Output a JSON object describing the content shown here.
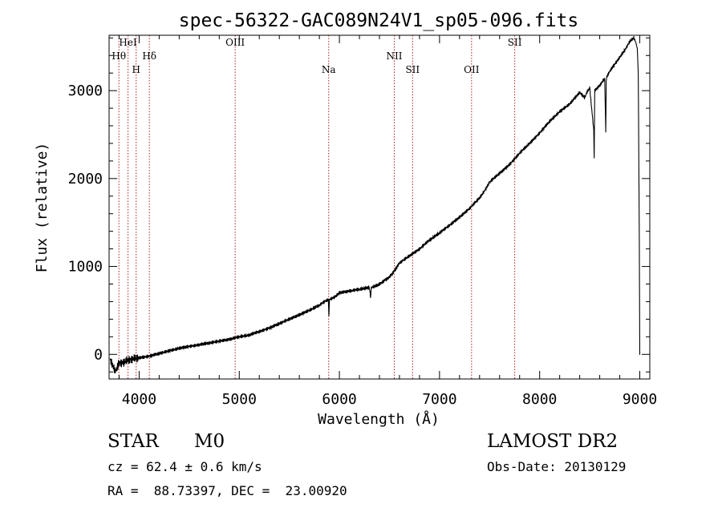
{
  "chart_data": {
    "type": "line",
    "title": "spec-56322-GAC089N24V1_sp05-096.fits",
    "xlabel": "Wavelength (Å)",
    "ylabel": "Flux (relative)",
    "xlim": [
      3700,
      9100
    ],
    "ylim": [
      -280,
      3630
    ],
    "xticks": [
      4000,
      5000,
      6000,
      7000,
      8000,
      9000
    ],
    "yticks": [
      0,
      1000,
      2000,
      3000
    ],
    "xtick_labels": [
      "4000",
      "5000",
      "6000",
      "7000",
      "8000",
      "9000"
    ],
    "ytick_labels": [
      "0",
      "1000",
      "2000",
      "3000"
    ],
    "line_color": "#000000",
    "marker_color": "#b22222",
    "spectral_lines": [
      {
        "label": "Hθ",
        "wavelength": 3798
      },
      {
        "label": "HeI",
        "wavelength": 3889
      },
      {
        "label": "H",
        "wavelength": 3970
      },
      {
        "label": "Hδ",
        "wavelength": 4102
      },
      {
        "label": "OIII",
        "wavelength": 4959
      },
      {
        "label": "Na",
        "wavelength": 5893
      },
      {
        "label": "NII",
        "wavelength": 6548
      },
      {
        "label": "SII",
        "wavelength": 6731
      },
      {
        "label": "OII",
        "wavelength": 7320
      },
      {
        "label": "SII",
        "wavelength": 7751
      }
    ],
    "series": [
      {
        "x": [
          3710,
          3760,
          3800,
          3850,
          3900,
          3950,
          4000,
          4100,
          4200,
          4300,
          4400,
          4500,
          4600,
          4700,
          4800,
          4900,
          5000,
          5100,
          5200,
          5300,
          5400,
          5500,
          5600,
          5700,
          5800,
          5850,
          5890,
          5895,
          5900,
          5950,
          6000,
          6100,
          6200,
          6300,
          6310,
          6320,
          6400,
          6500,
          6550,
          6600,
          6700,
          6800,
          6900,
          7000,
          7100,
          7200,
          7300,
          7400,
          7450,
          7500,
          7600,
          7700,
          7800,
          7900,
          8000,
          8100,
          8200,
          8300,
          8400,
          8450,
          8480,
          8500,
          8540,
          8545,
          8550,
          8600,
          8650,
          8660,
          8665,
          8670,
          8700,
          8750,
          8800,
          8850,
          8900,
          8920,
          8940,
          8960,
          8975,
          8985,
          8990,
          8995,
          9000,
          9005
        ],
        "y": [
          -50,
          -200,
          -100,
          -90,
          -60,
          -50,
          -40,
          -20,
          10,
          40,
          70,
          90,
          110,
          130,
          150,
          170,
          200,
          220,
          260,
          300,
          350,
          400,
          450,
          500,
          560,
          600,
          620,
          420,
          620,
          650,
          700,
          720,
          740,
          760,
          650,
          760,
          800,
          880,
          950,
          1040,
          1120,
          1200,
          1300,
          1380,
          1470,
          1560,
          1660,
          1780,
          1860,
          1960,
          2060,
          2160,
          2290,
          2400,
          2520,
          2650,
          2760,
          2850,
          2980,
          2920,
          3000,
          3030,
          2550,
          2220,
          3000,
          3060,
          3140,
          2520,
          3100,
          3160,
          3220,
          3300,
          3380,
          3460,
          3560,
          3580,
          3600,
          3550,
          3480,
          3200,
          2200,
          1360,
          0,
          0
        ]
      }
    ]
  },
  "info": {
    "object_class": "STAR",
    "subclass": "M0",
    "survey": "LAMOST DR2",
    "redshift": "cz = 62.4 ± 0.6 km/s",
    "obs_date": "Obs-Date: 20130129",
    "coords": "RA =  88.73397, DEC =  23.00920"
  }
}
